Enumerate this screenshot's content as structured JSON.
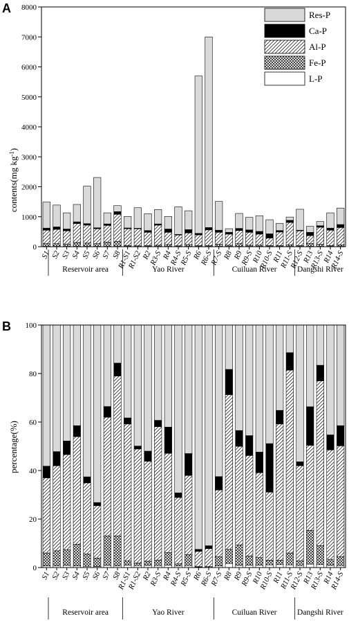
{
  "categories": [
    "S1",
    "S2",
    "S3",
    "S4",
    "S5",
    "S6",
    "S7",
    "S8",
    "R1-S1",
    "R1-S2",
    "R2",
    "R3-S",
    "R4",
    "R4-S",
    "R5-S",
    "R6",
    "R6-S",
    "R7-S",
    "R8",
    "R9",
    "R9-S",
    "R10",
    "R10-S",
    "R11",
    "R11-S",
    "R12-S",
    "R13",
    "R13-S",
    "R14",
    "R14-S"
  ],
  "groups": [
    {
      "label": "Reservoir area",
      "start": 0,
      "end": 7
    },
    {
      "label": "Yao River",
      "start": 8,
      "end": 16
    },
    {
      "label": "Cuiluan River",
      "start": 17,
      "end": 24
    },
    {
      "label": "Dangshi River",
      "start": 25,
      "end": 29
    }
  ],
  "legend_order": [
    "Res-P",
    "Ca-P",
    "Al-P",
    "Fe-P",
    "L-P"
  ],
  "fills": {
    "L-P": "#ffffff",
    "Fe-P": "pattern-cross",
    "Al-P": "pattern-diag",
    "Ca-P": "#000000",
    "Res-P": "#d9d9d9"
  },
  "chart_data": [
    {
      "panel": "A",
      "type": "bar",
      "stacked": true,
      "title": "",
      "xlabel": "",
      "ylabel": "contents(mg kg-1)",
      "ylabel_main": "contents(mg kg",
      "ylabel_exp": "-1",
      "ylabel_close": ")",
      "ylim": [
        0,
        8000
      ],
      "yticks": [
        0,
        1000,
        2000,
        3000,
        4000,
        5000,
        6000,
        7000,
        8000
      ],
      "legend": "top-right",
      "series": [
        {
          "name": "L-P",
          "values": [
            10,
            10,
            10,
            10,
            10,
            10,
            10,
            10,
            10,
            10,
            10,
            10,
            10,
            10,
            10,
            10,
            10,
            10,
            10,
            10,
            10,
            10,
            10,
            10,
            10,
            10,
            10,
            10,
            10,
            10
          ]
        },
        {
          "name": "Fe-P",
          "values": [
            90,
            90,
            80,
            130,
            110,
            90,
            140,
            170,
            30,
            20,
            30,
            40,
            60,
            20,
            60,
            25,
            30,
            70,
            40,
            90,
            40,
            40,
            30,
            30,
            50,
            30,
            100,
            70,
            30,
            50
          ]
        },
        {
          "name": "Al-P",
          "values": [
            450,
            480,
            440,
            630,
            600,
            500,
            560,
            900,
            560,
            570,
            440,
            670,
            410,
            360,
            390,
            360,
            520,
            400,
            370,
            440,
            430,
            370,
            250,
            450,
            750,
            490,
            260,
            570,
            510,
            580
          ]
        },
        {
          "name": "Ca-P",
          "values": [
            70,
            80,
            60,
            60,
            50,
            30,
            50,
            90,
            25,
            15,
            60,
            40,
            110,
            20,
            110,
            50,
            80,
            70,
            60,
            70,
            80,
            90,
            140,
            50,
            70,
            20,
            110,
            50,
            70,
            100
          ]
        },
        {
          "name": "Res-P",
          "values": [
            870,
            730,
            540,
            580,
            1250,
            1680,
            370,
            200,
            385,
            685,
            560,
            480,
            420,
            920,
            630,
            5250,
            6360,
            960,
            120,
            500,
            420,
            520,
            470,
            240,
            110,
            700,
            200,
            140,
            510,
            550
          ]
        }
      ]
    },
    {
      "panel": "B",
      "type": "bar",
      "stacked": true,
      "title": "",
      "xlabel": "",
      "ylabel": "percentage(%)",
      "ylim": [
        0,
        100
      ],
      "yticks": [
        0,
        20,
        40,
        60,
        80,
        100
      ],
      "series": [
        {
          "name": "L-P",
          "values": [
            0.7,
            0.7,
            0.9,
            0.7,
            0.5,
            0.4,
            0.9,
            0.7,
            1.0,
            0.8,
            0.9,
            0.8,
            1.0,
            0.7,
            0.8,
            0.2,
            0.1,
            0.7,
            1.7,
            0.9,
            1.0,
            1.0,
            1.1,
            1.2,
            1.1,
            0.8,
            1.4,
            1.2,
            0.9,
            0.8
          ]
        },
        {
          "name": "Fe-P",
          "values": [
            5.3,
            6.2,
            6.5,
            8.9,
            5.1,
            3.5,
            12.1,
            12.3,
            1.8,
            1.1,
            1.7,
            2.3,
            5.2,
            0.8,
            4.5,
            0.2,
            0.3,
            3.8,
            5.8,
            8.4,
            3.8,
            3.1,
            1.9,
            1.8,
            4.9,
            2.0,
            13.9,
            7.8,
            2.5,
            3.7
          ]
        },
        {
          "name": "Al-P",
          "values": [
            31.0,
            35.1,
            39.2,
            44.4,
            29.3,
            21.6,
            49.0,
            66.0,
            56.4,
            47.0,
            41.2,
            55.0,
            40.9,
            27.4,
            32.7,
            6.3,
            7.4,
            27.5,
            63.8,
            40.7,
            41.4,
            35.0,
            28.1,
            56.2,
            75.4,
            39.2,
            35.1,
            68.0,
            45.1,
            45.7
          ]
        },
        {
          "name": "Ca-P",
          "values": [
            4.8,
            5.8,
            5.6,
            4.5,
            2.5,
            1.3,
            4.4,
            5.3,
            2.5,
            1.2,
            4.2,
            2.6,
            10.8,
            1.9,
            9.0,
            0.8,
            1.2,
            5.5,
            10.4,
            6.5,
            8.2,
            8.5,
            20.0,
            5.6,
            7.2,
            1.6,
            15.9,
            6.4,
            6.2,
            8.3
          ]
        },
        {
          "name": "Res-P",
          "values": [
            58.2,
            52.2,
            47.8,
            41.5,
            62.6,
            73.2,
            33.6,
            15.7,
            38.3,
            49.9,
            52.0,
            39.3,
            42.1,
            69.2,
            53.0,
            92.5,
            91.0,
            62.5,
            18.3,
            43.5,
            45.6,
            52.4,
            48.9,
            35.2,
            11.4,
            56.4,
            33.7,
            16.6,
            45.3,
            41.5
          ]
        }
      ]
    }
  ]
}
